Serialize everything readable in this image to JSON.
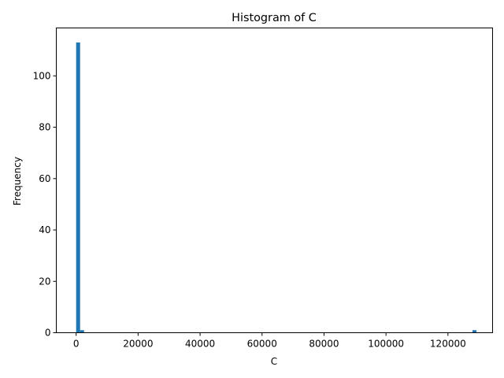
{
  "chart_data": {
    "type": "bar",
    "title": "Histogram of C",
    "xlabel": "C",
    "ylabel": "Frequency",
    "xlim": [
      -6400,
      134400
    ],
    "ylim": [
      0,
      118.65
    ],
    "x_ticks": [
      0,
      20000,
      40000,
      60000,
      80000,
      100000,
      120000
    ],
    "y_ticks": [
      0,
      20,
      40,
      60,
      80,
      100
    ],
    "bin_width": 1280,
    "bins": [
      {
        "x_start": 0,
        "x_end": 1280,
        "count": 113
      },
      {
        "x_start": 1280,
        "x_end": 2560,
        "count": 1
      },
      {
        "x_start": 127920,
        "x_end": 129200,
        "count": 1
      }
    ],
    "bar_color": "#1f77b4",
    "grid": false,
    "legend": "none"
  }
}
